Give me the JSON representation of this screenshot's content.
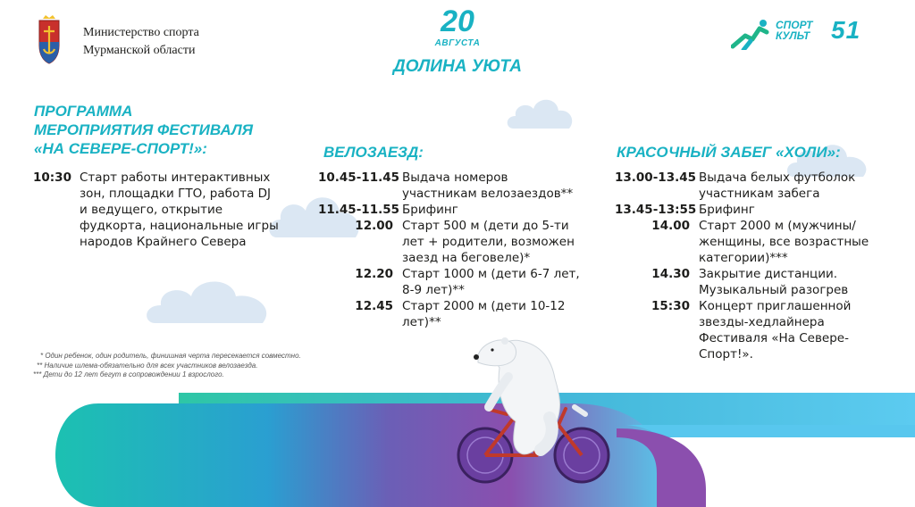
{
  "header": {
    "ministry_line1": "Министерство спорта",
    "ministry_line2": "Мурманской области",
    "date_day": "20",
    "date_month": "АВГУСТА",
    "place": "ДОЛИНА УЮТА",
    "logo_line1": "СПОРТ",
    "logo_line2": "КУЛЬТ",
    "logo_num": "51"
  },
  "program": {
    "title_line1": "ПРОГРАММА",
    "title_line2": "МЕРОПРИЯТИЯ ФЕСТИВАЛЯ",
    "title_line3": "«НА СЕВЕРЕ-СПОРТ!»:",
    "items": [
      {
        "time": "10:30",
        "text": "Старт работы интерактивных зон, площадки ГТО, работа DJ и ведущего, открытие фудкорта, национальные игры народов Крайнего Севера"
      }
    ]
  },
  "velo": {
    "title": "ВЕЛОЗАЕЗД:",
    "items": [
      {
        "time": "10.45-11.45",
        "text": "Выдача номеров участникам велозаездов**"
      },
      {
        "time": "11.45-11.55",
        "text": "Брифинг"
      },
      {
        "time": "12.00",
        "text": "Старт 500 м (дети до 5-ти лет + родители, возможен заезд на беговеле)*"
      },
      {
        "time": "12.20",
        "text": "Старт 1000 м (дети 6-7 лет, 8-9 лет)**"
      },
      {
        "time": "12.45",
        "text": "Старт 2000 м (дети 10-12 лет)**"
      }
    ]
  },
  "holi": {
    "title": "КРАСОЧНЫЙ ЗАБЕГ «ХОЛИ»:",
    "items": [
      {
        "time": "13.00-13.45",
        "text": "Выдача белых футболок участникам забега"
      },
      {
        "time": "13.45-13:55",
        "text": "Брифинг"
      },
      {
        "time": "14.00",
        "text": "Старт 2000 м (мужчины/женщины, все возрастные категории)***"
      },
      {
        "time": "14.30",
        "text": "Закрытие дистанции. Музыкальный разогрев"
      },
      {
        "time": "15:30",
        "text": "Концерт приглашенной звезды-хедлайнера Фестиваля «На Севере-Спорт!»."
      }
    ]
  },
  "notes": [
    "* Один ребенок, один родитель, финишная черта пересекается совместно.",
    "** Наличие шлема-обязательно для всех участников велозаезда.",
    "*** Дети до 12 лет бегут в сопровождении 1 взрослого."
  ],
  "colors": {
    "accent": "#19b2c3",
    "bike": "#c0392b",
    "wheel": "#6a3fa0"
  },
  "icons": {
    "coat": "murmansk-coat-of-arms-icon",
    "logo": "runner-logo-icon",
    "illustration": "polar-bear-cyclist"
  }
}
